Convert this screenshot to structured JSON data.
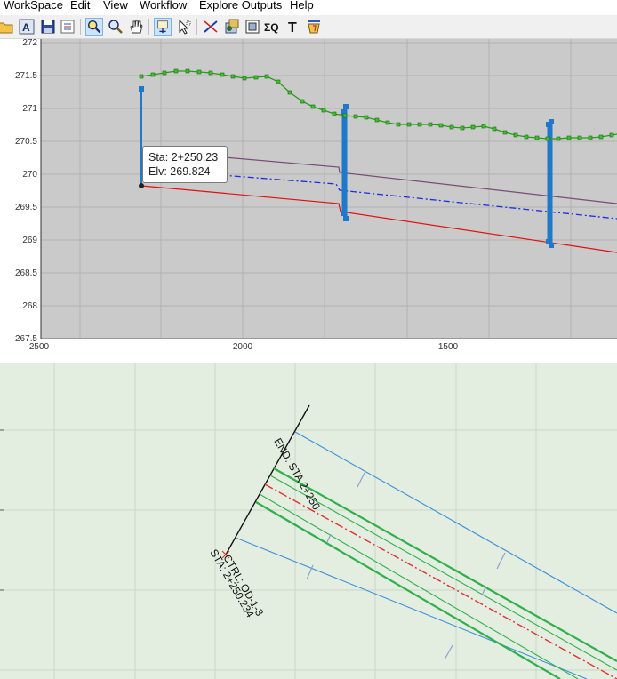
{
  "menu": {
    "items": [
      "WorkSpace",
      "Edit",
      "View",
      "Workflow",
      "Explore Outputs",
      "Help"
    ]
  },
  "toolbar": {
    "icons": [
      "open-folder-icon",
      "text-style-icon",
      "save-icon",
      "properties-icon",
      "zoom-window-icon",
      "zoom-icon",
      "pan-hand-icon",
      "select-point-icon",
      "select-arrow-icon",
      "line-tool-icon",
      "grid-layers-icon",
      "zoom-extents-icon",
      "sum-q-icon",
      "text-tool-icon",
      "bucket-icon"
    ],
    "sum_label": "ΣQ",
    "text_label": "T"
  },
  "profile": {
    "y_ticks": [
      "272",
      "271.5",
      "271",
      "270.5",
      "270",
      "269.5",
      "269",
      "268.5",
      "268",
      "267.5"
    ],
    "x_ticks": [
      "2500",
      "2000",
      "1500"
    ],
    "tooltip": {
      "sta": "Sta: 2+250.23",
      "elv": "Elv: 269.824"
    }
  },
  "plan": {
    "end_label": "END: STA 2+250",
    "ctrl_label": "CTRL: OD-1-3",
    "sta_label": "STA: 2+250.234"
  },
  "colors": {
    "profile_bg": "#cacaca",
    "plan_bg": "#e3eee1",
    "ground_line": "#2a9a1a",
    "ground_point": "#3cc12a",
    "red_line": "#e01010",
    "purple_line": "#7a4a7a",
    "blue_dashdot": "#1a2ee0",
    "structure_blue": "#1f78c8",
    "plan_green": "#2fb04a",
    "plan_blue": "#3a8fdc",
    "centerline_red": "#e03030"
  }
}
